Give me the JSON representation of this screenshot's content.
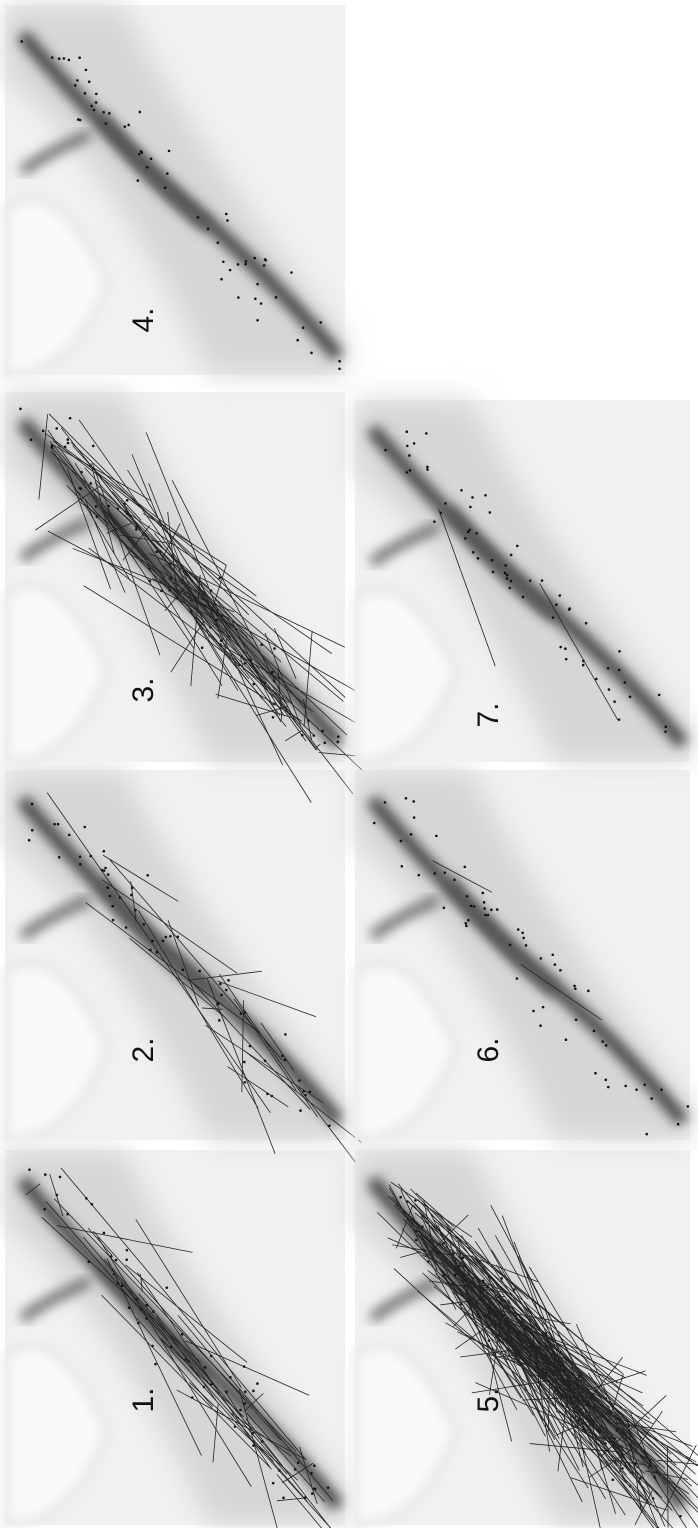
{
  "panels": [
    {
      "label": "1."
    },
    {
      "label": "2."
    },
    {
      "label": "3."
    },
    {
      "label": "4."
    },
    {
      "label": "5."
    },
    {
      "label": "6."
    },
    {
      "label": "7."
    }
  ]
}
